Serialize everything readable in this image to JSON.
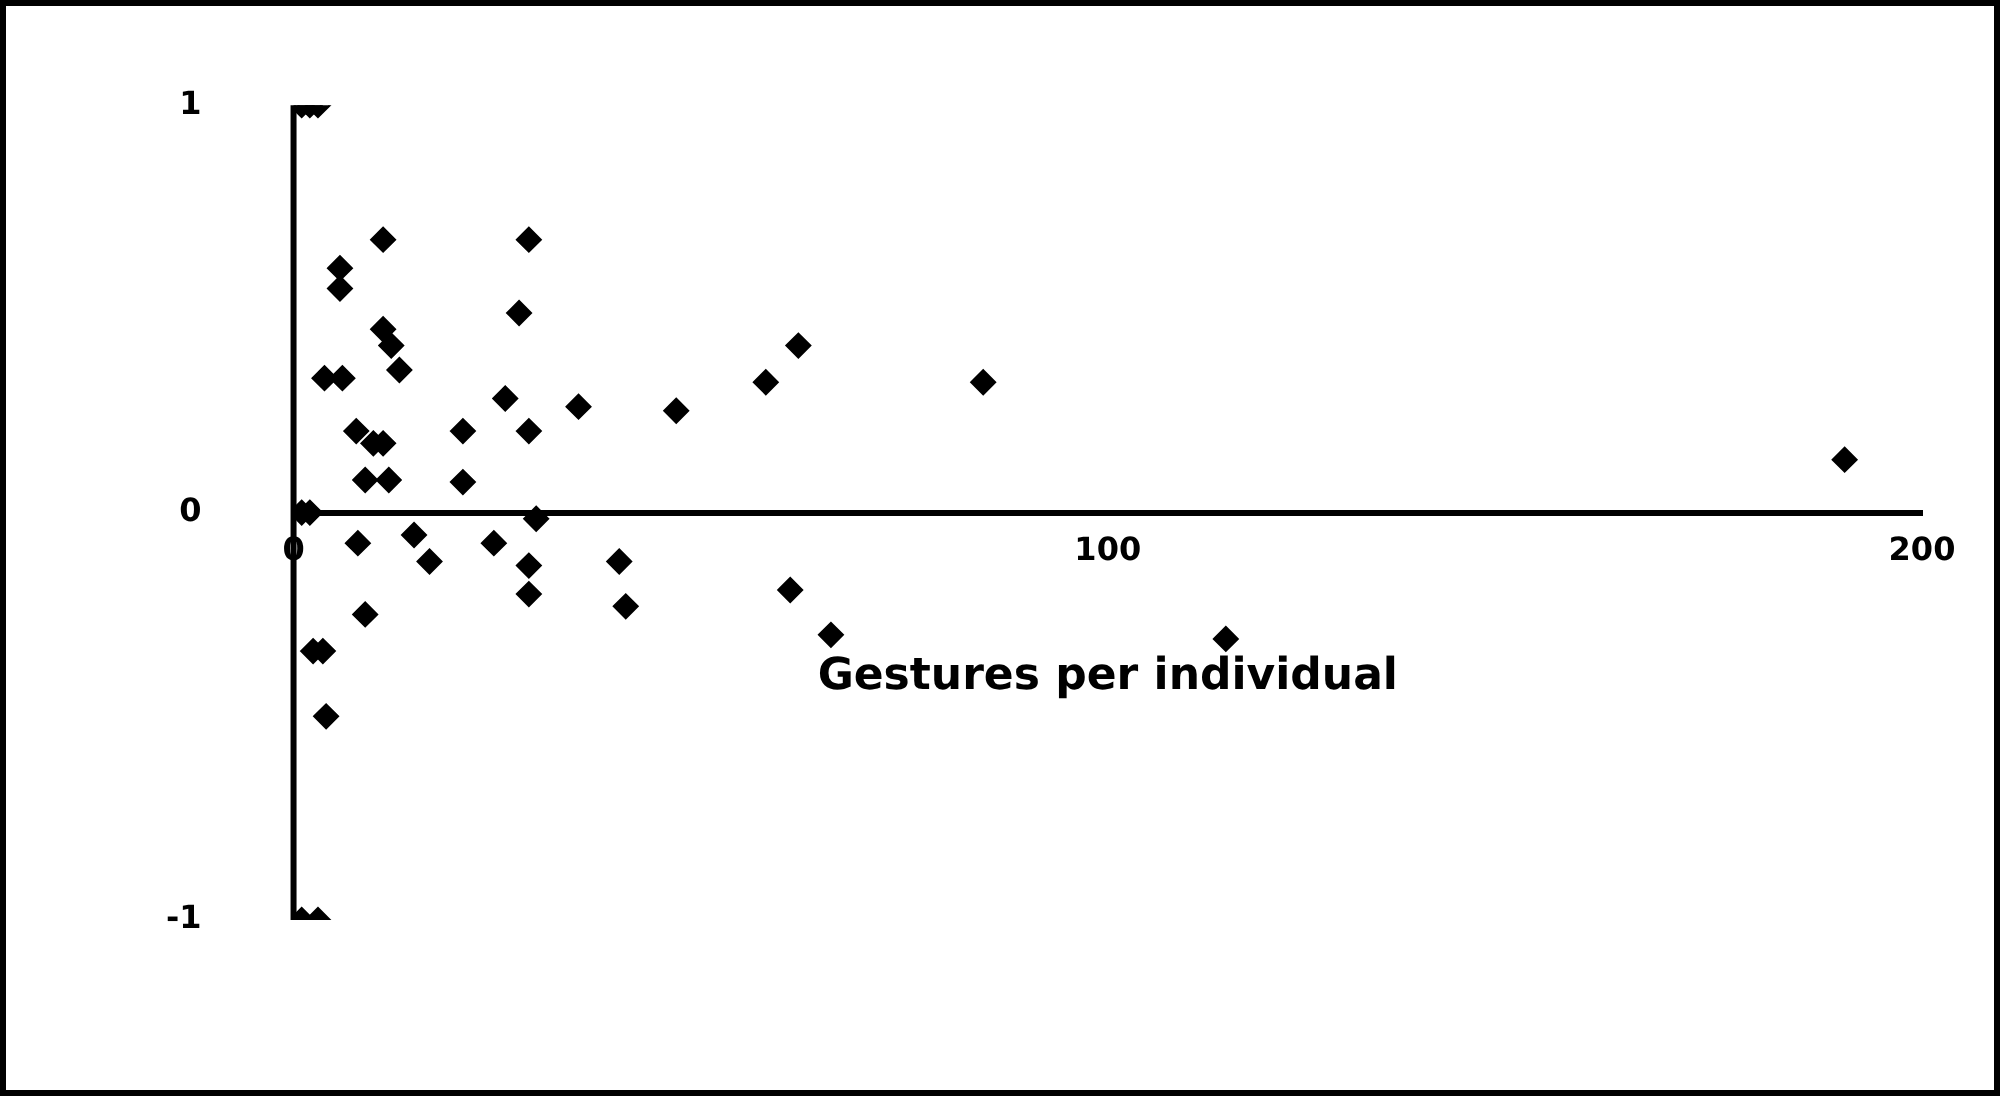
{
  "chart_data": {
    "type": "scatter",
    "xlabel": "Gestures per individual",
    "xlim": [
      0,
      200
    ],
    "xticks": [
      0,
      100,
      200
    ],
    "ylim": [
      -1,
      1
    ],
    "yticks": [
      -1,
      0,
      1
    ],
    "grid": false,
    "legend": false,
    "marker": "diamond",
    "series": [
      {
        "color": "#000000",
        "x": [
          1,
          2,
          3,
          1,
          3,
          1,
          2,
          2.4,
          3.6,
          4,
          3.8,
          6,
          5.7,
          5.7,
          11,
          11,
          12,
          13,
          7.7,
          9.8,
          11,
          8.8,
          11.7,
          20.8,
          20.8,
          26,
          27.7,
          28.9,
          28.9,
          35,
          29.8,
          7.9,
          14.8,
          16.7,
          8.8,
          24.6,
          28.9,
          28.9,
          40,
          40.8,
          47,
          58,
          62,
          84.7,
          61,
          66,
          114.5,
          190.5
        ],
        "values": [
          1,
          1,
          1,
          -1,
          -1,
          0,
          0,
          -0.34,
          -0.34,
          -0.5,
          0.33,
          0.33,
          0.6,
          0.55,
          0.67,
          0.45,
          0.41,
          0.35,
          0.2,
          0.17,
          0.17,
          0.08,
          0.08,
          0.2,
          0.075,
          0.28,
          0.49,
          0.67,
          0.2,
          0.26,
          -0.015,
          -0.075,
          -0.055,
          -0.12,
          -0.25,
          -0.075,
          -0.13,
          -0.2,
          -0.12,
          -0.23,
          0.25,
          0.32,
          0.41,
          0.32,
          -0.19,
          -0.3,
          -0.31,
          0.13
        ]
      }
    ]
  }
}
